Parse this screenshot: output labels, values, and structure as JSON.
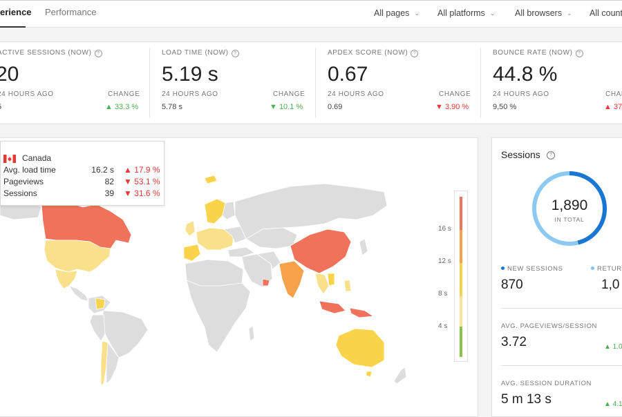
{
  "tabs": [
    {
      "label": "erience",
      "active": true
    },
    {
      "label": "Performance",
      "active": false
    }
  ],
  "filters": [
    {
      "label": "All pages"
    },
    {
      "label": "All platforms"
    },
    {
      "label": "All browsers"
    },
    {
      "label": "All count"
    }
  ],
  "metrics": [
    {
      "label": "ACTIVE SESSIONS (NOW)",
      "value": "20",
      "sub": "24 HOURS AGO",
      "prev": "5",
      "change_label": "CHANGE",
      "change": "▲ 33.3 %",
      "change_color": "#4caf50"
    },
    {
      "label": "LOAD TIME (NOW)",
      "value": "5.19 s",
      "sub": "24 HOURS AGO",
      "prev": "5.78 s",
      "change_label": "CHANGE",
      "change": "▼ 10.1 %",
      "change_color": "#4caf50"
    },
    {
      "label": "APDEX SCORE (NOW)",
      "value": "0.67",
      "sub": "24 HOURS AGO",
      "prev": "0.69",
      "change_label": "CHANGE",
      "change": "▼ 3.90 %",
      "change_color": "#e53935"
    },
    {
      "label": "BOUNCE RATE (NOW)",
      "value": "44.8 %",
      "sub": "24 HOURS AGO",
      "prev": "9,50 %",
      "change_label": "CHAN",
      "change": "▲ 37",
      "change_color": "#e53935"
    }
  ],
  "tooltip": {
    "country": "Canada",
    "rows": [
      {
        "label": "Avg. load time",
        "value": "16.2 s",
        "change": "▲ 17.9 %"
      },
      {
        "label": "Pageviews",
        "value": "82",
        "change": "▼ 53.1 %"
      },
      {
        "label": "Sessions",
        "value": "39",
        "change": "▼ 31.6 %"
      }
    ]
  },
  "legend": {
    "ticks": [
      "16 s",
      "12 s",
      "8 s",
      "4 s"
    ],
    "colors": [
      "#f0725a",
      "#f6a24a",
      "#f8d34a",
      "#f9e39a",
      "#8bc34a"
    ]
  },
  "sessions": {
    "title": "Sessions",
    "total": "1,890",
    "total_label": "IN TOTAL",
    "new_fraction": 0.46,
    "new_label": "NEW SESSIONS",
    "new_value": "870",
    "new_color": "#1976d2",
    "returning_label": "RETURN",
    "returning_value": "1,0",
    "returning_color": "#7cc3f0",
    "pps_label": "AVG. PAGEVIEWS/SESSION",
    "pps_value": "3.72",
    "pps_change": "▲ 1.0",
    "dur_label": "AVG. SESSION DURATION",
    "dur_value": "5 m 13 s",
    "dur_change": "▲ 4.1"
  }
}
